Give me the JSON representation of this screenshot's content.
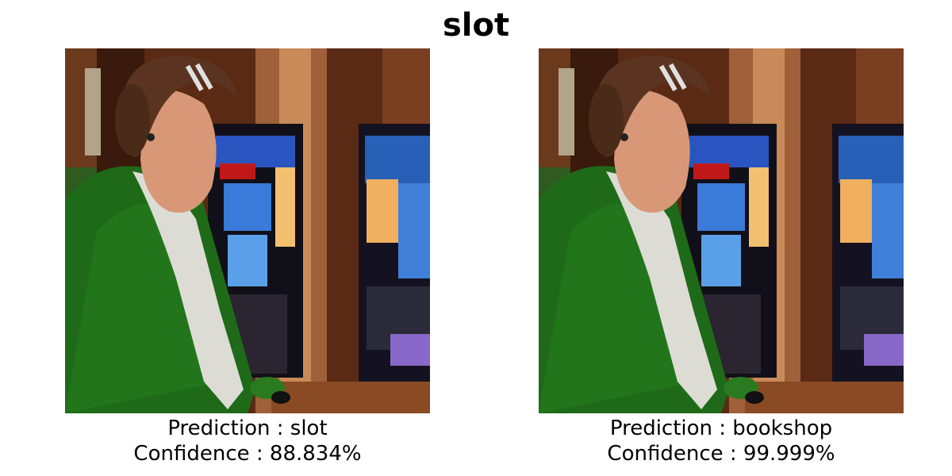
{
  "figure": {
    "title": "slot"
  },
  "panels": [
    {
      "prediction_label": "Prediction : slot",
      "confidence_label": "Confidence : 88.834%"
    },
    {
      "prediction_label": "Prediction : bookshop",
      "confidence_label": "Confidence : 99.999%"
    }
  ]
}
